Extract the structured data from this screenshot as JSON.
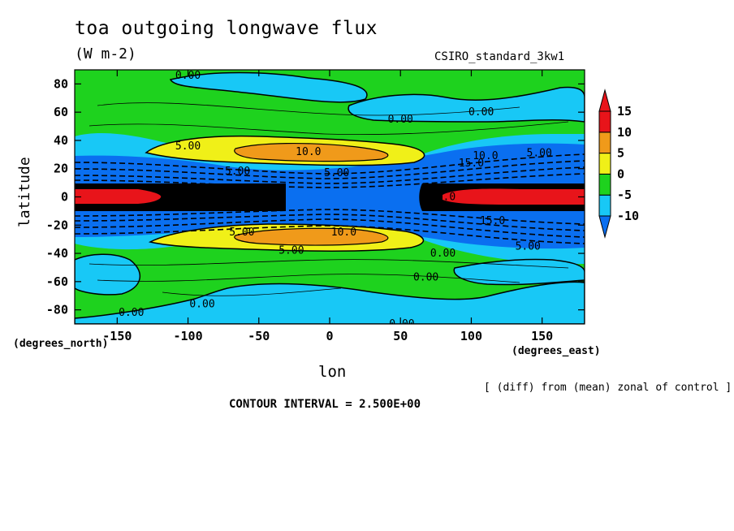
{
  "chart_data": {
    "type": "heatmap",
    "title": "toa outgoing longwave flux",
    "units": "(W m-2)",
    "model": "CSIRO_standard_3kw1",
    "xlabel": "lon",
    "ylabel": "latitude",
    "x_unit": "(degrees_east)",
    "y_unit": "(degrees_north)",
    "note": "[ (diff) from (mean) zonal of control ]",
    "contour_interval": "CONTOUR INTERVAL = 2.500E+00",
    "xlim": [
      -180,
      180
    ],
    "ylim": [
      -90,
      90
    ],
    "x_ticks": [
      -150,
      -100,
      -50,
      0,
      50,
      100,
      150
    ],
    "y_ticks": [
      80,
      60,
      40,
      20,
      0,
      -20,
      -40,
      -60,
      -80
    ],
    "colorbar": {
      "levels": [
        -10,
        -5,
        0,
        5,
        10,
        15
      ],
      "labels": [
        "15",
        "10",
        "5",
        "0",
        "-5",
        "-10"
      ],
      "colors": [
        "#0a6ff0",
        "#18c8f6",
        "#1ed21e",
        "#f0f018",
        "#f09a1a",
        "#e8141a"
      ]
    },
    "contour_labels": [
      {
        "text": "0.00",
        "lon": -100,
        "lat": 86
      },
      {
        "text": "0.00",
        "lon": 50,
        "lat": 55
      },
      {
        "text": "0.00",
        "lon": 107,
        "lat": 60
      },
      {
        "text": "5.00",
        "lon": -100,
        "lat": 36
      },
      {
        "text": "10.0",
        "lon": -15,
        "lat": 32
      },
      {
        "text": "10.0",
        "lon": 110,
        "lat": 29
      },
      {
        "text": "5.00",
        "lon": 148,
        "lat": 31
      },
      {
        "text": "5.00",
        "lon": 5,
        "lat": 17
      },
      {
        "text": "5.00",
        "lon": -65,
        "lat": 18
      },
      {
        "text": "15.0",
        "lon": 100,
        "lat": 24
      },
      {
        "text": "15.0",
        "lon": 115,
        "lat": -17
      },
      {
        "text": "15.0",
        "lon": 80,
        "lat": 0
      },
      {
        "text": "5.00",
        "lon": -62,
        "lat": -25
      },
      {
        "text": "10.0",
        "lon": 10,
        "lat": -25
      },
      {
        "text": "5.00",
        "lon": -27,
        "lat": -38
      },
      {
        "text": "0.00",
        "lon": 80,
        "lat": -40
      },
      {
        "text": "5.00",
        "lon": 140,
        "lat": -35
      },
      {
        "text": "0.00",
        "lon": 68,
        "lat": -57
      },
      {
        "text": "0.00",
        "lon": -90,
        "lat": -76
      },
      {
        "text": "0.00",
        "lon": -140,
        "lat": -82
      },
      {
        "text": "0.00",
        "lon": 51,
        "lat": -90
      }
    ]
  }
}
